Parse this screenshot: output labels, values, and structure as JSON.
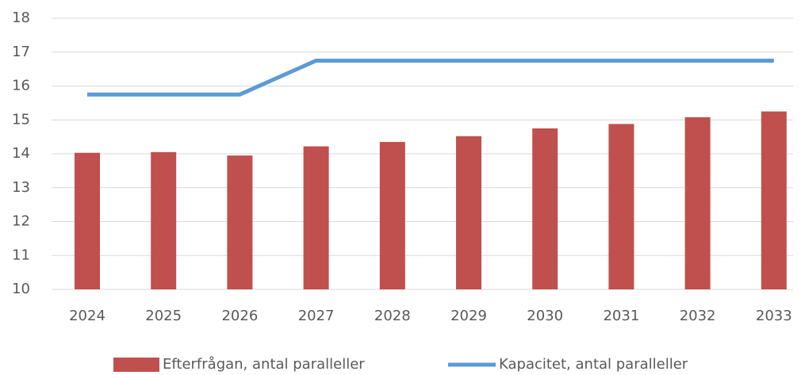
{
  "chart_data": {
    "type": "combo",
    "categories": [
      "2024",
      "2025",
      "2026",
      "2027",
      "2028",
      "2029",
      "2030",
      "2031",
      "2032",
      "2033"
    ],
    "series": [
      {
        "name": "Efterfrågan, antal paralleller",
        "type": "bar",
        "color": "#c0504d",
        "values": [
          14.03,
          14.05,
          13.95,
          14.22,
          14.35,
          14.52,
          14.75,
          14.88,
          15.08,
          15.25
        ]
      },
      {
        "name": "Kapacitet, antal paralleller",
        "type": "line",
        "color": "#5b9bd5",
        "values": [
          15.75,
          15.75,
          15.75,
          16.75,
          16.75,
          16.75,
          16.75,
          16.75,
          16.75,
          16.75
        ]
      }
    ],
    "ylim": [
      10,
      18
    ],
    "yticks": [
      10,
      11,
      12,
      13,
      14,
      15,
      16,
      17,
      18
    ],
    "grid": true,
    "legend": "bottom"
  }
}
